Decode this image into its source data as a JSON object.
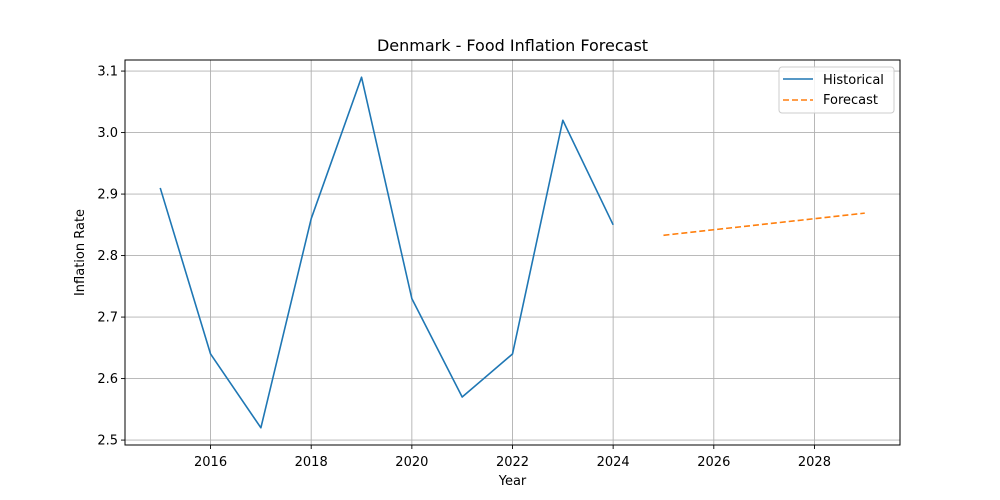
{
  "chart_data": {
    "type": "line",
    "title": "Denmark - Food Inflation Forecast",
    "xlabel": "Year",
    "ylabel": "Inflation Rate",
    "xlim": [
      2014.3,
      2029.7
    ],
    "ylim": [
      2.492,
      3.118
    ],
    "xticks": [
      2016,
      2018,
      2020,
      2022,
      2024,
      2026,
      2028
    ],
    "xtick_labels": [
      "2016",
      "2018",
      "2020",
      "2022",
      "2024",
      "2026",
      "2028"
    ],
    "yticks": [
      2.5,
      2.6,
      2.7,
      2.8,
      2.9,
      3.0,
      3.1
    ],
    "ytick_labels": [
      "2.5",
      "2.6",
      "2.7",
      "2.8",
      "2.9",
      "3.0",
      "3.1"
    ],
    "grid": true,
    "legend_position": "top-right",
    "series": [
      {
        "name": "Historical",
        "style": "solid",
        "color": "#1f77b4",
        "x": [
          2015,
          2016,
          2017,
          2018,
          2019,
          2020,
          2021,
          2022,
          2023,
          2024
        ],
        "y": [
          2.91,
          2.64,
          2.52,
          2.86,
          3.09,
          2.73,
          2.57,
          2.64,
          3.02,
          2.85
        ]
      },
      {
        "name": "Forecast",
        "style": "dashed",
        "color": "#ff7f0e",
        "x": [
          2025,
          2026,
          2027,
          2028,
          2029
        ],
        "y": [
          2.833,
          2.842,
          2.851,
          2.86,
          2.869
        ]
      }
    ]
  }
}
